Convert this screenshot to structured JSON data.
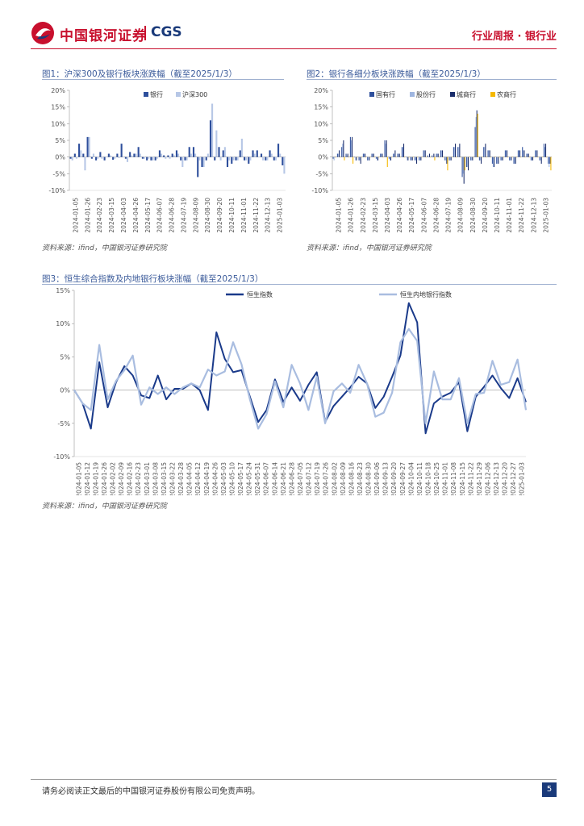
{
  "header": {
    "logo_text": "中国银河证券",
    "logo_cgs": "CGS",
    "report_type": "行业周报 · 银行业",
    "brand_color": "#c8102e",
    "brand_blue": "#1a3a7a"
  },
  "figures": [
    {
      "title": "图1：沪深300及银行板块涨跌幅（截至2025/1/3）",
      "source": "资料来源：ifind，中国银河证券研究院"
    },
    {
      "title": "图2：银行各细分板块涨跌幅（截至2025/1/3）",
      "source": "资料来源：ifind，中国银河证券研究院"
    },
    {
      "title": "图3：恒生综合指数及内地银行板块涨幅（截至2025/1/3）",
      "source": "资料来源：ifind，中国银河证券研究院"
    }
  ],
  "chart_data": [
    {
      "type": "bar",
      "title": "图1：沪深300及银行板块涨跌幅（截至2025/1/3）",
      "yticks": [
        "20%",
        "15%",
        "10%",
        "5%",
        "0%",
        "-5%",
        "-10%"
      ],
      "ylim": [
        -10,
        20
      ],
      "xticks": [
        "2024-01-05",
        "2024-01-26",
        "2024-02-23",
        "2024-03-15",
        "2024-04-03",
        "2024-04-26",
        "2024-05-17",
        "2024-06-07",
        "2024-06-28",
        "2024-07-19",
        "2024-08-09",
        "2024-08-30",
        "2024-09-20",
        "2024-10-11",
        "2024-11-01",
        "2024-11-22",
        "2024-12-13",
        "2025-01-03"
      ],
      "legend": [
        "银行",
        "沪深300"
      ],
      "colors": [
        "#2e4f9c",
        "#b7c7e6"
      ],
      "series": [
        {
          "name": "银行",
          "values": [
            -0.5,
            1,
            4,
            1,
            6,
            -0.5,
            -1,
            1.5,
            -1,
            1,
            -0.8,
            1,
            4,
            -0.5,
            1.5,
            1,
            3,
            -0.5,
            -1,
            -1,
            -1,
            2,
            0.5,
            0.5,
            1,
            2,
            -1,
            -1,
            3,
            3,
            -6,
            -3,
            -1,
            11,
            -1,
            3,
            2,
            -3,
            -2,
            -1,
            2,
            -1,
            -2,
            2,
            2,
            1,
            -1,
            2,
            -1,
            4,
            -2.5
          ]
        },
        {
          "name": "沪深300",
          "values": [
            -1,
            -0.5,
            2,
            -4,
            6,
            1,
            -0.5,
            -0.5,
            0,
            0.5,
            -0.5,
            -0.3,
            0,
            -1.5,
            0.5,
            1,
            1,
            -0.5,
            -0.5,
            -1,
            -0.5,
            1,
            -0.5,
            -0.5,
            0.5,
            1,
            -3,
            -1,
            1,
            1,
            -1,
            -3,
            1,
            16,
            8,
            -1,
            3,
            -1,
            -1,
            -1,
            5.5,
            -1,
            -1,
            1,
            0,
            -1,
            -1,
            1,
            -1,
            1,
            -5
          ]
        }
      ]
    },
    {
      "type": "bar",
      "title": "图2：银行各细分板块涨跌幅（截至2025/1/3）",
      "yticks": [
        "20%",
        "15%",
        "10%",
        "5%",
        "0%",
        "-5%",
        "-10%"
      ],
      "ylim": [
        -10,
        20
      ],
      "xticks": [
        "2024-01-05",
        "2024-01-26",
        "2024-02-23",
        "2024-03-15",
        "2024-04-03",
        "2024-04-26",
        "2024-05-17",
        "2024-06-07",
        "2024-06-28",
        "2024-07-19",
        "2024-08-09",
        "2024-08-30",
        "2024-09-20",
        "2024-10-11",
        "2024-11-01",
        "2024-11-22",
        "2024-12-13",
        "2025-01-03"
      ],
      "legend": [
        "国有行",
        "股份行",
        "城商行",
        "农商行"
      ],
      "colors": [
        "#2e4f9c",
        "#9fb6e0",
        "#1a2d6b",
        "#f5b800"
      ],
      "series": [
        {
          "name": "国有行",
          "values": [
            -0.5,
            1,
            3,
            1,
            6,
            0,
            -1,
            1,
            -1,
            1,
            -0.5,
            1,
            5,
            -0.5,
            1,
            1,
            3,
            0,
            -1,
            -1,
            -1,
            2,
            0.5,
            0.5,
            1,
            2,
            -1,
            -1,
            3,
            3,
            -6,
            -3,
            -1,
            9,
            -1,
            3,
            2,
            -2,
            -2,
            -1,
            2,
            -1,
            -2,
            2,
            3,
            1,
            -1,
            2,
            -1,
            4,
            -2
          ]
        },
        {
          "name": "股份行",
          "values": [
            -1,
            1,
            4,
            0.5,
            5,
            -1,
            -1,
            1,
            -1,
            1,
            -1,
            1,
            4,
            -1,
            1,
            1,
            3,
            -1,
            -1,
            -1,
            -1,
            2,
            0,
            0,
            1,
            2,
            -1,
            -1,
            3,
            3,
            -5,
            -3,
            -1,
            12,
            -1,
            3,
            2,
            -3,
            -2,
            -1,
            2,
            -1,
            -2,
            2,
            2,
            1,
            -1,
            2,
            -1,
            3,
            -3
          ]
        },
        {
          "name": "城商行",
          "values": [
            0,
            2,
            5,
            1,
            6,
            -1,
            -2,
            1,
            -1,
            1,
            -1,
            1,
            5,
            -1,
            2,
            1,
            4,
            -1,
            -1,
            -2,
            -1,
            2,
            1,
            1,
            1,
            2,
            -2,
            -1,
            4,
            4,
            -8,
            -4,
            -1,
            14,
            -2,
            4,
            2,
            -3,
            -2,
            -1,
            2,
            -1,
            -2,
            2,
            2,
            1,
            -1,
            2,
            -2,
            4,
            -2
          ]
        },
        {
          "name": "农商行",
          "values": [
            0,
            0,
            -1,
            0,
            -2,
            0,
            0,
            0,
            0,
            0,
            0,
            0,
            -3,
            0,
            0,
            0,
            0,
            0,
            0,
            0,
            0,
            0,
            0,
            -1,
            0,
            0,
            -4,
            0,
            0,
            0,
            -4,
            0,
            0,
            13,
            0,
            0,
            0,
            0,
            0,
            0,
            0,
            0,
            0,
            0,
            0,
            0,
            0,
            0,
            0,
            0,
            -4
          ]
        }
      ]
    },
    {
      "type": "line",
      "title": "图3：恒生综合指数及内地银行板块涨幅（截至2025/1/3）",
      "yticks": [
        "15%",
        "10%",
        "5%",
        "0%",
        "-5%",
        "-10%"
      ],
      "ylim": [
        -10,
        15
      ],
      "xticks": [
        "2024-01-05",
        "2024-01-12",
        "2024-01-19",
        "2024-01-26",
        "2024-02-02",
        "2024-02-09",
        "2024-02-16",
        "2024-02-23",
        "2024-03-01",
        "2024-03-08",
        "2024-03-15",
        "2024-03-22",
        "2024-03-28",
        "2024-04-05",
        "2024-04-12",
        "2024-04-19",
        "2024-04-26",
        "2024-05-03",
        "2024-05-10",
        "2024-05-17",
        "2024-05-24",
        "2024-05-31",
        "2024-06-07",
        "2024-06-14",
        "2024-06-21",
        "2024-06-28",
        "2024-07-05",
        "2024-07-12",
        "2024-07-19",
        "2024-07-26",
        "2024-08-02",
        "2024-08-09",
        "2024-08-16",
        "2024-08-23",
        "2024-08-30",
        "2024-09-06",
        "2024-09-13",
        "2024-09-20",
        "2024-09-27",
        "2024-10-04",
        "2024-10-11",
        "2024-10-18",
        "2024-10-25",
        "2024-11-01",
        "2024-11-08",
        "2024-11-15",
        "2024-11-22",
        "2024-11-29",
        "2024-12-06",
        "2024-12-13",
        "2024-12-20",
        "2024-12-27",
        "2025-01-03"
      ],
      "legend": [
        "恒生指数",
        "恒生内地银行指数"
      ],
      "colors": [
        "#1a3a8a",
        "#a9bde0"
      ],
      "series": [
        {
          "name": "恒生指数",
          "values": [
            0,
            -2,
            -5.8,
            4.2,
            -2.6,
            1.2,
            3.6,
            2.2,
            -0.8,
            -1.2,
            2.2,
            -1.4,
            0.2,
            0.2,
            1,
            0,
            -3,
            8.7,
            4.7,
            2.7,
            3,
            -1,
            -4.8,
            -3,
            1.6,
            -1.8,
            0.4,
            -1.6,
            0.8,
            2.7,
            -4.8,
            -2.4,
            -1,
            0.4,
            2,
            1,
            -2.7,
            -1,
            2,
            5.2,
            13.1,
            10.2,
            -6.5,
            -2,
            -1,
            -0.4,
            1.2,
            -6.2,
            -1,
            0.5,
            2.2,
            0.3,
            -1.2,
            1.8,
            -1.8
          ]
        },
        {
          "name": "恒生内地银行指数",
          "values": [
            0,
            -2,
            -3,
            6.8,
            -1.4,
            1.4,
            3,
            5.2,
            -2.2,
            0.4,
            -0.6,
            0.4,
            -0.6,
            0.4,
            1,
            0.4,
            3.1,
            2.2,
            2.8,
            7.2,
            3.9,
            -1.4,
            -5.8,
            -3.6,
            1.3,
            -2.6,
            3.8,
            1,
            -3,
            2,
            -5,
            -0.2,
            1,
            -0.4,
            3.8,
            1,
            -4,
            -3.4,
            -0.4,
            7.2,
            9.2,
            7.4,
            -5,
            2.8,
            -1.4,
            -1.4,
            1.8,
            -5,
            -0.6,
            -0.4,
            4.4,
            0.8,
            1.2,
            4.6,
            -3
          ]
        }
      ]
    }
  ],
  "footer": {
    "disclaimer": "请务必阅读正文最后的中国银河证券股份有限公司免责声明。",
    "page_number": "5"
  }
}
